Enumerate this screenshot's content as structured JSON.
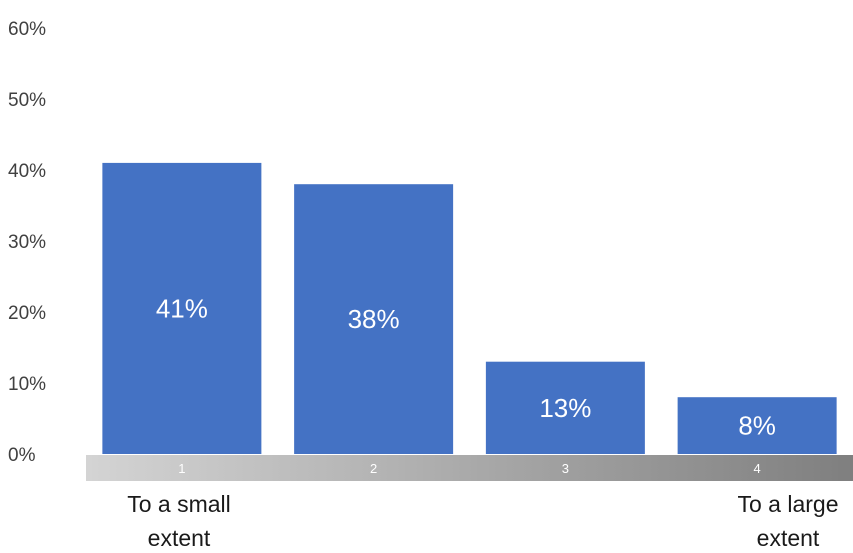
{
  "chart_data": {
    "type": "bar",
    "categories": [
      "1",
      "2",
      "3",
      "4"
    ],
    "values": [
      41,
      38,
      13,
      8
    ],
    "value_labels": [
      "41%",
      "38%",
      "13%",
      "8%"
    ],
    "y_ticks": [
      "0%",
      "10%",
      "20%",
      "30%",
      "40%",
      "50%",
      "60%"
    ],
    "ylim": [
      0,
      60
    ],
    "title": "",
    "xlabel": "",
    "ylabel": "",
    "grid": false,
    "legend": "none",
    "scale_end_labels": {
      "left": [
        "To a small",
        "extent"
      ],
      "right": [
        "To a large",
        "extent"
      ]
    },
    "colors": {
      "bar": "#4472C4",
      "value_label": "#FFFFFF",
      "tick_label": "#404040",
      "scale_start": "#d4d4d4",
      "scale_end": "#7f7f7f",
      "end_label": "#1a1a1a"
    }
  }
}
